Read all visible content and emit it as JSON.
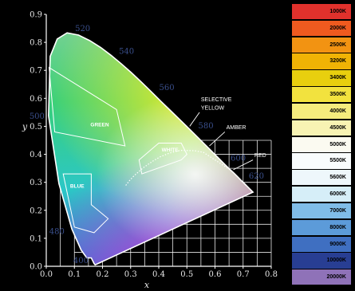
{
  "chart_data": {
    "type": "scatter",
    "title": "",
    "xlabel": "x",
    "ylabel": "y",
    "xlim": [
      0.0,
      0.8
    ],
    "ylim": [
      0.0,
      0.9
    ],
    "xticks": [
      "0.0",
      "0.1",
      "0.2",
      "0.3",
      "0.4",
      "0.5",
      "0.6",
      "0.7",
      "0.8"
    ],
    "yticks": [
      "0.0",
      "0.1",
      "0.2",
      "0.3",
      "0.4",
      "0.5",
      "0.6",
      "0.7",
      "0.8",
      "0.9"
    ],
    "grid": false,
    "spectral_locus": [
      {
        "x": 0.174,
        "y": 0.005
      },
      {
        "x": 0.17,
        "y": 0.01
      },
      {
        "x": 0.166,
        "y": 0.018
      },
      {
        "x": 0.16,
        "y": 0.03
      },
      {
        "x": 0.144,
        "y": 0.03
      },
      {
        "x": 0.124,
        "y": 0.058
      },
      {
        "x": 0.091,
        "y": 0.133
      },
      {
        "x": 0.045,
        "y": 0.295
      },
      {
        "x": 0.008,
        "y": 0.538
      },
      {
        "x": 0.014,
        "y": 0.75
      },
      {
        "x": 0.039,
        "y": 0.812
      },
      {
        "x": 0.074,
        "y": 0.834
      },
      {
        "x": 0.115,
        "y": 0.826
      },
      {
        "x": 0.155,
        "y": 0.806
      },
      {
        "x": 0.193,
        "y": 0.782
      },
      {
        "x": 0.23,
        "y": 0.754
      },
      {
        "x": 0.266,
        "y": 0.724
      },
      {
        "x": 0.302,
        "y": 0.692
      },
      {
        "x": 0.337,
        "y": 0.659
      },
      {
        "x": 0.373,
        "y": 0.624
      },
      {
        "x": 0.408,
        "y": 0.589
      },
      {
        "x": 0.444,
        "y": 0.554
      },
      {
        "x": 0.479,
        "y": 0.52
      },
      {
        "x": 0.512,
        "y": 0.487
      },
      {
        "x": 0.544,
        "y": 0.455
      },
      {
        "x": 0.575,
        "y": 0.424
      },
      {
        "x": 0.603,
        "y": 0.396
      },
      {
        "x": 0.627,
        "y": 0.372
      },
      {
        "x": 0.648,
        "y": 0.351
      },
      {
        "x": 0.666,
        "y": 0.334
      },
      {
        "x": 0.68,
        "y": 0.32
      },
      {
        "x": 0.692,
        "y": 0.308
      },
      {
        "x": 0.701,
        "y": 0.299
      },
      {
        "x": 0.708,
        "y": 0.292
      },
      {
        "x": 0.713,
        "y": 0.287
      },
      {
        "x": 0.735,
        "y": 0.265
      }
    ],
    "wavelength_labels": [
      {
        "text": "400",
        "x": 0.17,
        "y": 0.005
      },
      {
        "text": "480",
        "x": 0.09,
        "y": 0.133
      },
      {
        "text": "500",
        "x": 0.008,
        "y": 0.538
      },
      {
        "text": "520",
        "x": 0.074,
        "y": 0.834
      },
      {
        "text": "540",
        "x": 0.23,
        "y": 0.754
      },
      {
        "text": "560",
        "x": 0.373,
        "y": 0.624
      },
      {
        "text": "580",
        "x": 0.512,
        "y": 0.487
      },
      {
        "text": "600",
        "x": 0.627,
        "y": 0.372
      },
      {
        "text": "620",
        "x": 0.692,
        "y": 0.308
      }
    ],
    "regions": [
      {
        "name": "GREEN",
        "x": 0.19,
        "y": 0.5,
        "outline": [
          [
            0.01,
            0.71
          ],
          [
            0.25,
            0.56
          ],
          [
            0.28,
            0.43
          ],
          [
            0.03,
            0.48
          ]
        ]
      },
      {
        "name": "BLUE",
        "x": 0.11,
        "y": 0.28,
        "outline": [
          [
            0.06,
            0.33
          ],
          [
            0.16,
            0.33
          ],
          [
            0.16,
            0.22
          ],
          [
            0.22,
            0.17
          ],
          [
            0.17,
            0.12
          ],
          [
            0.1,
            0.14
          ]
        ]
      },
      {
        "name": "WHITE",
        "x": 0.44,
        "y": 0.41,
        "outline": [
          [
            0.33,
            0.38
          ],
          [
            0.4,
            0.44
          ],
          [
            0.48,
            0.44
          ],
          [
            0.5,
            0.4
          ],
          [
            0.48,
            0.38
          ],
          [
            0.34,
            0.33
          ]
        ]
      }
    ],
    "annotations": [
      {
        "text": "SELECTIVE",
        "x": 0.55,
        "y": 0.59
      },
      {
        "text": "YELLOW",
        "x": 0.55,
        "y": 0.56
      },
      {
        "text": "AMBER",
        "x": 0.64,
        "y": 0.49
      },
      {
        "text": "RED",
        "x": 0.74,
        "y": 0.39
      }
    ],
    "planckian_locus": [
      {
        "x": 0.653,
        "y": 0.345
      },
      {
        "x": 0.559,
        "y": 0.407
      },
      {
        "x": 0.527,
        "y": 0.413
      },
      {
        "x": 0.476,
        "y": 0.414
      },
      {
        "x": 0.437,
        "y": 0.404
      },
      {
        "x": 0.405,
        "y": 0.391
      },
      {
        "x": 0.381,
        "y": 0.377
      },
      {
        "x": 0.345,
        "y": 0.352
      },
      {
        "x": 0.313,
        "y": 0.324
      },
      {
        "x": 0.295,
        "y": 0.305
      },
      {
        "x": 0.282,
        "y": 0.288
      }
    ]
  },
  "legend": [
    {
      "label": "1000K",
      "color": "#e0312c"
    },
    {
      "label": "2000K",
      "color": "#ef5a1f"
    },
    {
      "label": "2500K",
      "color": "#f29312"
    },
    {
      "label": "3200K",
      "color": "#f0b305"
    },
    {
      "label": "3400K",
      "color": "#e8cf0e"
    },
    {
      "label": "3500K",
      "color": "#f2e23e"
    },
    {
      "label": "4000K",
      "color": "#f5ec7d"
    },
    {
      "label": "4500K",
      "color": "#f8f3b3"
    },
    {
      "label": "5000K",
      "color": "#fbfaf1"
    },
    {
      "label": "5500K",
      "color": "#f9fcfd"
    },
    {
      "label": "5600K",
      "color": "#eef7fb"
    },
    {
      "label": "6000K",
      "color": "#d6eef8"
    },
    {
      "label": "7000K",
      "color": "#80bde8"
    },
    {
      "label": "8000K",
      "color": "#5c9bd9"
    },
    {
      "label": "9000K",
      "color": "#3f6fc1"
    },
    {
      "label": "10000K",
      "color": "#283e93"
    },
    {
      "label": "20000K",
      "color": "#8f72b8"
    }
  ]
}
